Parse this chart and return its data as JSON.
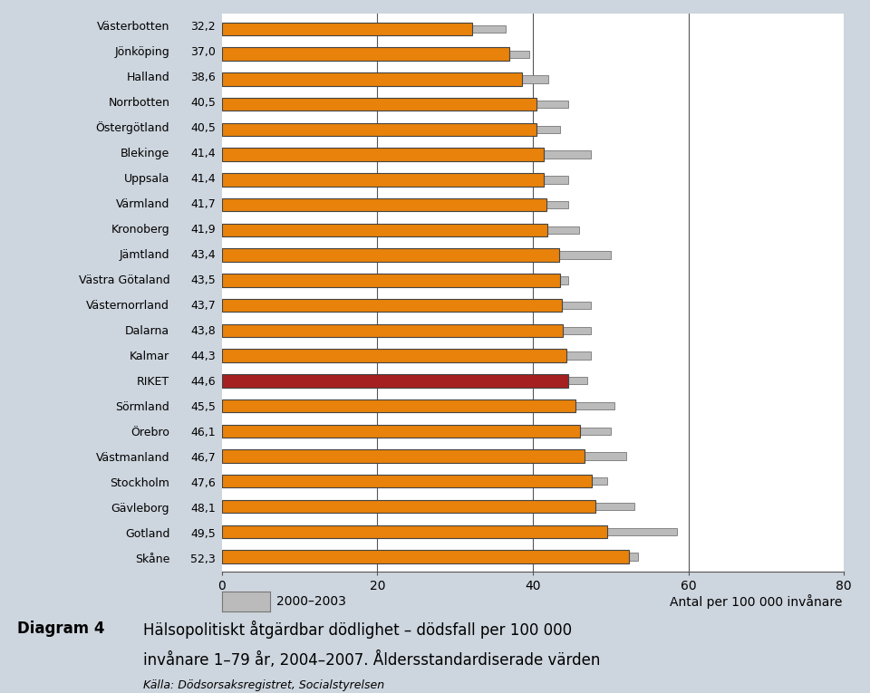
{
  "regions": [
    "Västerbotten",
    "Jönköping",
    "Halland",
    "Norrbotten",
    "Östergötland",
    "Blekinge",
    "Uppsala",
    "Värmland",
    "Kronoberg",
    "Jämtland",
    "Västra Götaland",
    "Västernorrland",
    "Dalarna",
    "Kalmar",
    "RIKET",
    "Sörmland",
    "Örebro",
    "Västmanland",
    "Stockholm",
    "Gävleborg",
    "Gotland",
    "Skåne"
  ],
  "values_2004_2007": [
    32.2,
    37.0,
    38.6,
    40.5,
    40.5,
    41.4,
    41.4,
    41.7,
    41.9,
    43.4,
    43.5,
    43.7,
    43.8,
    44.3,
    44.6,
    45.5,
    46.1,
    46.7,
    47.6,
    48.1,
    49.5,
    52.3
  ],
  "values_2000_2003": [
    36.5,
    39.5,
    42.0,
    44.5,
    43.5,
    47.5,
    44.5,
    44.5,
    46.0,
    50.0,
    44.5,
    47.5,
    47.5,
    47.5,
    47.0,
    50.5,
    50.0,
    52.0,
    49.5,
    53.0,
    58.5,
    53.5
  ],
  "bar_color_orange": "#E8820A",
  "bar_color_red": "#A52020",
  "bar_color_gray": "#BBBBBB",
  "bar_edge_color": "#444444",
  "background_color": "#CDD5DE",
  "plot_bg_color": "#FFFFFF",
  "riket_index": 14,
  "xlim": [
    0,
    80
  ],
  "xticks": [
    0,
    20,
    40,
    60,
    80
  ],
  "legend_label": "2000–2003",
  "legend_unit": "Antal per 100 000 invånare",
  "diagram_label": "Diagram 4",
  "title_line1": "Hälsopolitiskt åtgärdbar dödlighet – dödsfall per 100 000",
  "title_line2": "invånare 1–79 år, 2004–2007. Åldersstandardiserade värden",
  "source": "Källa: Dödsorsaksregistret, Socialstyrelsen"
}
